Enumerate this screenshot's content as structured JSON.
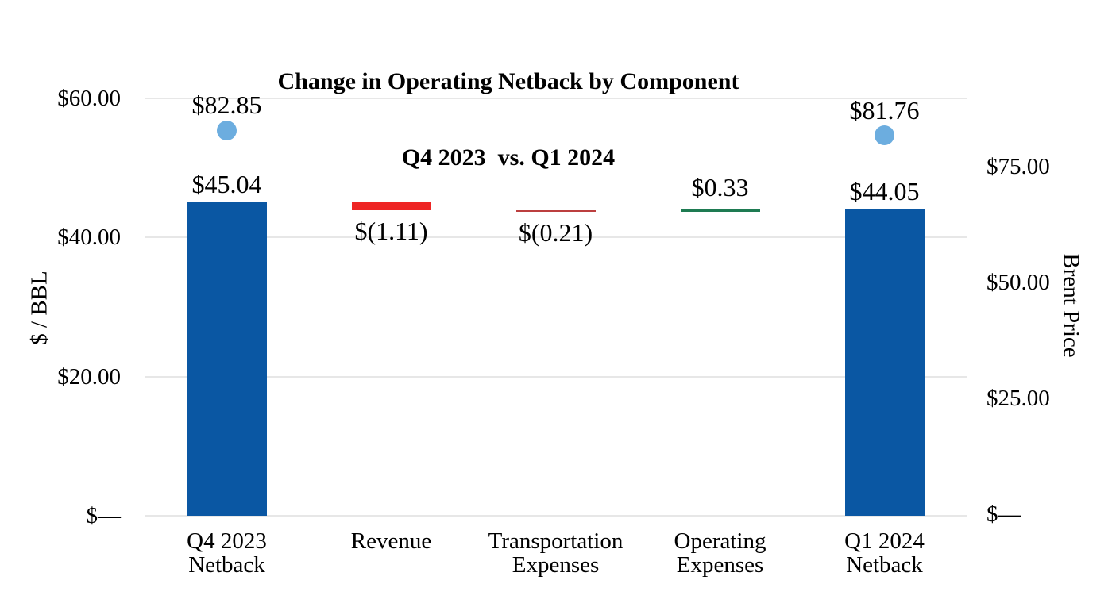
{
  "chart_data": {
    "type": "bar",
    "subtype": "waterfall-with-scatter-markers",
    "title_line1": "Change in Operating Netback by Component",
    "title_line2": "Q4 2023  vs. Q1 2024",
    "left_axis": {
      "title": "$ / BBL",
      "range": [
        0,
        60
      ],
      "ticks": [
        {
          "value": 60,
          "label": "$60.00"
        },
        {
          "value": 40,
          "label": "$40.00"
        },
        {
          "value": 20,
          "label": "$20.00"
        },
        {
          "value": 0,
          "label": "$—"
        }
      ]
    },
    "right_axis": {
      "title": "Brent Price",
      "range": [
        0,
        75
      ],
      "ticks": [
        {
          "value": 75,
          "label": "$75.00"
        },
        {
          "value": 50,
          "label": "$50.00"
        },
        {
          "value": 25,
          "label": "$25.00"
        },
        {
          "value": 0,
          "label": "$—"
        }
      ]
    },
    "categories": [
      "Q4 2023\nNetback",
      "Revenue",
      "Transportation\nExpenses",
      "Operating\nExpenses",
      "Q1 2024\nNetback"
    ],
    "bars": [
      {
        "category": "Q4 2023 Netback",
        "kind": "total",
        "value": 45.04,
        "label": "$45.04",
        "color": "#0A57A3"
      },
      {
        "category": "Revenue",
        "kind": "delta",
        "value": -1.11,
        "label": "$(1.11)",
        "color": "#EE2524"
      },
      {
        "category": "Transportation Expenses",
        "kind": "delta",
        "value": -0.21,
        "label": "$(0.21)",
        "color": "#BC3F3F"
      },
      {
        "category": "Operating Expenses",
        "kind": "delta",
        "value": 0.33,
        "label": "$0.33",
        "color": "#1E7B52"
      },
      {
        "category": "Q1 2024 Netback",
        "kind": "total",
        "value": 44.05,
        "label": "$44.05",
        "color": "#0A57A3"
      }
    ],
    "brent_markers": [
      {
        "category_index": 0,
        "value": 82.85,
        "label": "$82.85",
        "color": "#6CADDF"
      },
      {
        "category_index": 4,
        "value": 81.76,
        "label": "$81.76",
        "color": "#6CADDF"
      }
    ],
    "gridline_color": "#E7E7E7",
    "text_color": "#000000",
    "background_color": "#FFFFFF",
    "legend": "none",
    "grid": "horizontal-only"
  }
}
